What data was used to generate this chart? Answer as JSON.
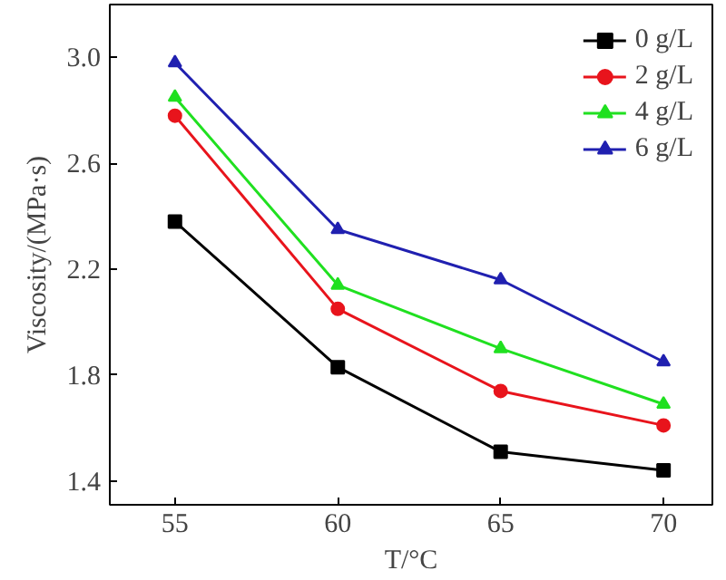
{
  "chart_data": {
    "type": "line",
    "xlabel": "T/°C",
    "ylabel": "Viscosity/(MPa·s)",
    "x": [
      55,
      60,
      65,
      70
    ],
    "xlim": [
      53,
      71.5
    ],
    "xticks": [
      55,
      60,
      65,
      70
    ],
    "ylim": [
      1.31,
      3.2
    ],
    "yticks": [
      1.4,
      1.8,
      2.2,
      2.6,
      {
        "value": 3,
        "label": "3.0"
      }
    ],
    "grid": false,
    "legend": "top right",
    "series": [
      {
        "name": "0 g/L",
        "color": "#000000",
        "marker": "square",
        "values": [
          2.38,
          1.83,
          1.51,
          1.44
        ]
      },
      {
        "name": "2 g/L",
        "color": "#e8141c",
        "marker": "circle",
        "values": [
          2.78,
          2.05,
          1.74,
          1.61
        ]
      },
      {
        "name": "4 g/L",
        "color": "#20e020",
        "marker": "triangle",
        "values": [
          2.85,
          2.14,
          1.9,
          1.69
        ]
      },
      {
        "name": "6 g/L",
        "color": "#2020b0",
        "marker": "triangle",
        "values": [
          2.98,
          2.35,
          2.16,
          1.85
        ]
      }
    ]
  }
}
